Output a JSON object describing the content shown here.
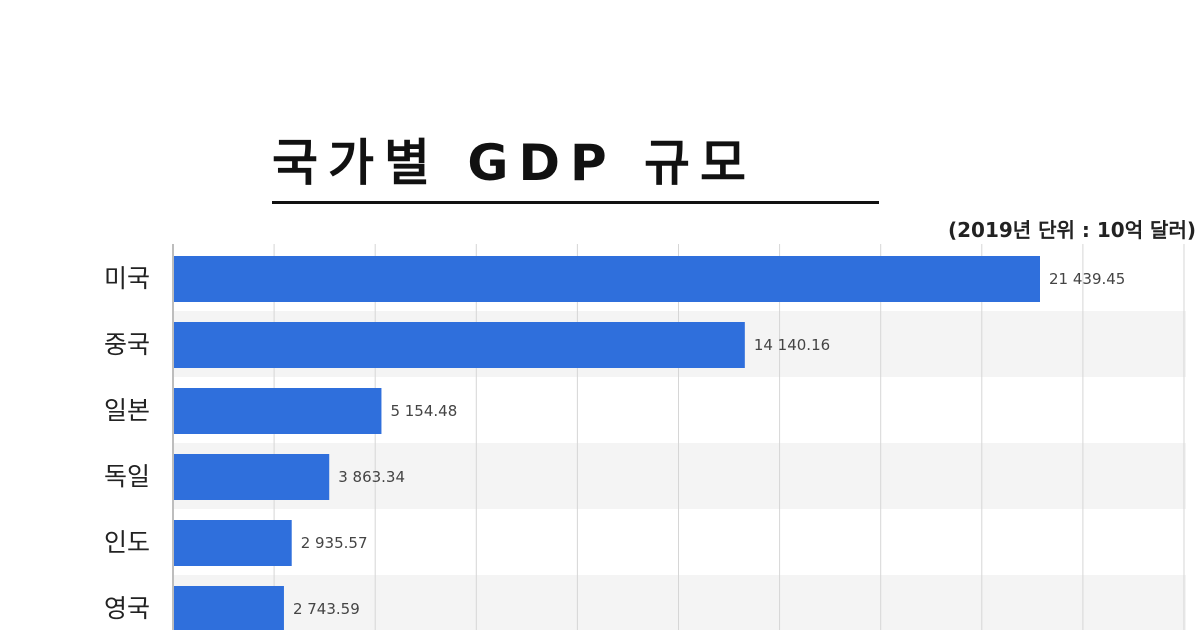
{
  "chart_data": {
    "type": "bar",
    "orientation": "horizontal",
    "title": "국가별 GDP 규모",
    "unit_note": "(2019년 단위 : 10억 달러)",
    "categories": [
      "미국",
      "중국",
      "일본",
      "독일",
      "인도",
      "영국"
    ],
    "values": [
      21439.45,
      14140.16,
      5154.48,
      3863.34,
      2935.57,
      2743.59
    ],
    "value_labels": [
      "21 439.45",
      "14 140.16",
      "5 154.48",
      "3 863.34",
      "2 935.57",
      "2 743.59"
    ],
    "xlim": [
      0,
      25000
    ],
    "grid": true,
    "bar_color": "#2f6fdc",
    "stripe_color": "#f4f4f4"
  }
}
